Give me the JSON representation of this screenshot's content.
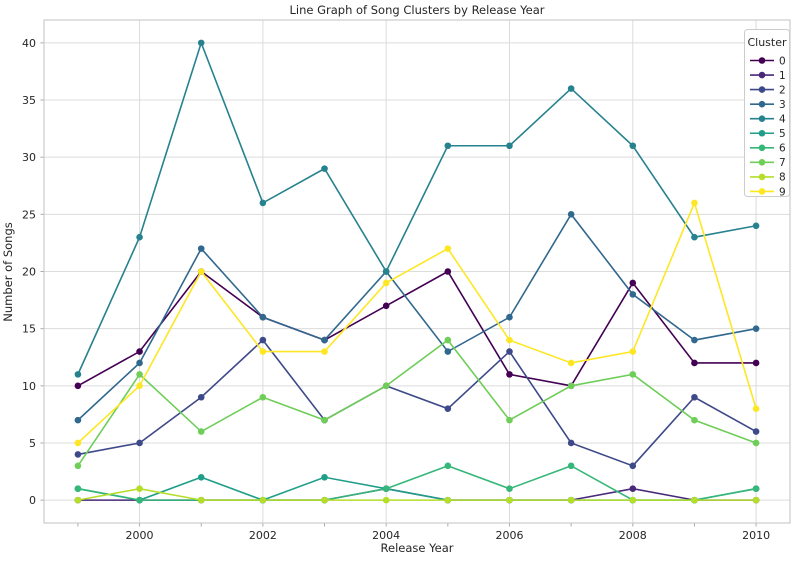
{
  "title": "Line Graph of Song Clusters by Release Year",
  "chart_data": {
    "type": "line",
    "title": "Line Graph of Song Clusters by Release Year",
    "xlabel": "Release Year",
    "ylabel": "Number of Songs",
    "legend_title": "Cluster",
    "legend_position": "upper right",
    "grid": true,
    "background": "#ffffff",
    "grid_color": "#dcdcdc",
    "spine_color": "#cccccc",
    "text_color": "#262626",
    "x": [
      1999,
      2000,
      2001,
      2002,
      2003,
      2004,
      2005,
      2006,
      2007,
      2008,
      2009,
      2010
    ],
    "xticks": [
      2000,
      2002,
      2004,
      2006,
      2008,
      2010
    ],
    "yticks": [
      0,
      5,
      10,
      15,
      20,
      25,
      30,
      35,
      40
    ],
    "xlim": [
      1998.45,
      2010.55
    ],
    "ylim": [
      -2,
      42
    ],
    "series": [
      {
        "name": "0",
        "color": "#440154",
        "values": [
          10,
          13,
          20,
          16,
          14,
          17,
          20,
          11,
          10,
          19,
          12,
          12
        ]
      },
      {
        "name": "1",
        "color": "#482878",
        "values": [
          0,
          0,
          0,
          0,
          0,
          1,
          0,
          0,
          0,
          1,
          0,
          0
        ]
      },
      {
        "name": "2",
        "color": "#3e4989",
        "values": [
          4,
          5,
          9,
          14,
          7,
          10,
          8,
          13,
          5,
          3,
          9,
          6
        ]
      },
      {
        "name": "3",
        "color": "#31688e",
        "values": [
          7,
          12,
          22,
          16,
          14,
          20,
          13,
          16,
          25,
          18,
          14,
          15
        ]
      },
      {
        "name": "4",
        "color": "#26828e",
        "values": [
          11,
          23,
          40,
          26,
          29,
          20,
          31,
          31,
          36,
          31,
          23,
          24
        ]
      },
      {
        "name": "5",
        "color": "#1f9e89",
        "values": [
          1,
          0,
          2,
          0,
          2,
          1,
          0,
          0,
          0,
          0,
          0,
          1
        ]
      },
      {
        "name": "6",
        "color": "#35b779",
        "values": [
          1,
          0,
          0,
          0,
          0,
          1,
          3,
          1,
          3,
          0,
          0,
          1
        ]
      },
      {
        "name": "7",
        "color": "#6ece58",
        "values": [
          3,
          11,
          6,
          9,
          7,
          10,
          14,
          7,
          10,
          11,
          7,
          5
        ]
      },
      {
        "name": "8",
        "color": "#b5de2b",
        "values": [
          0,
          1,
          0,
          0,
          0,
          0,
          0,
          0,
          0,
          0,
          0,
          0
        ]
      },
      {
        "name": "9",
        "color": "#fde725",
        "values": [
          5,
          10,
          20,
          13,
          13,
          19,
          22,
          14,
          12,
          13,
          26,
          8
        ]
      }
    ]
  }
}
